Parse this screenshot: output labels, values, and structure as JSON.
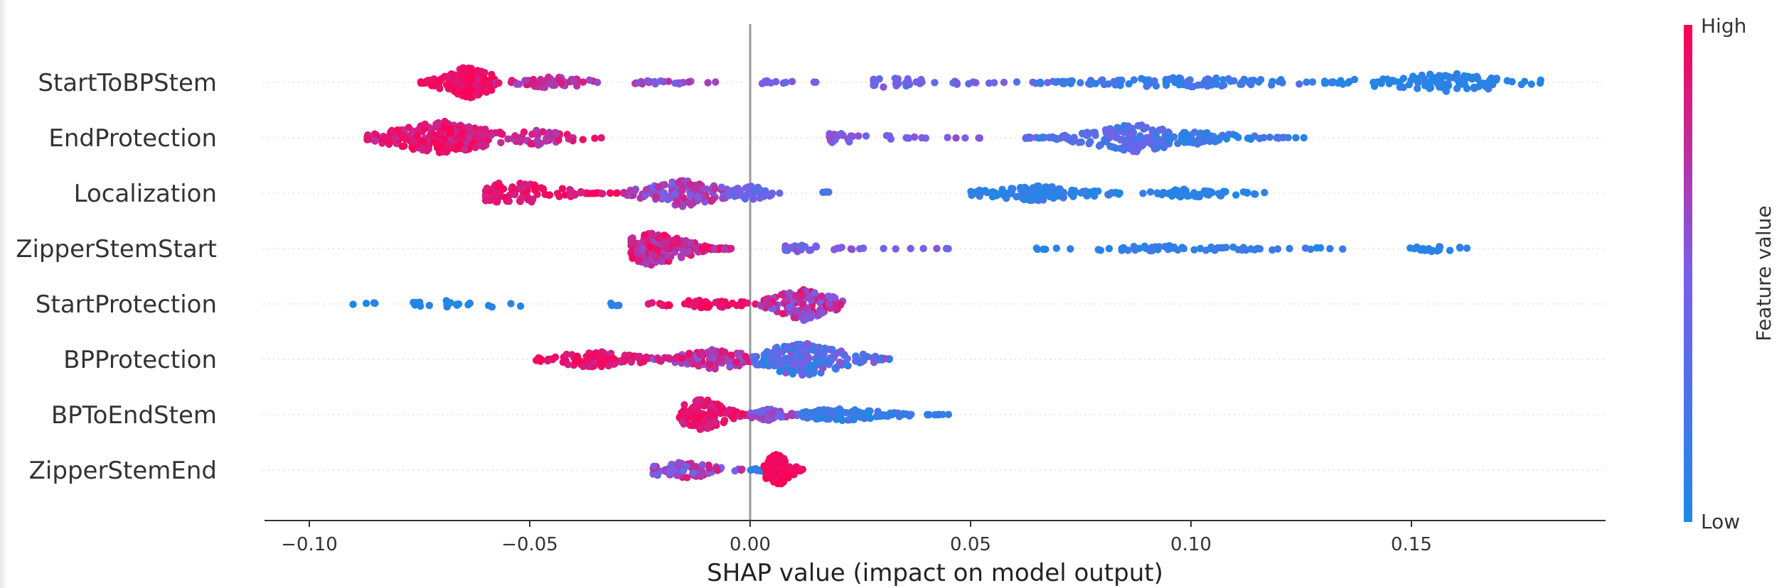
{
  "chart_data": {
    "type": "scatter",
    "subtype": "shap-beeswarm",
    "title": "",
    "xlabel": "SHAP value (impact on model output)",
    "xlim": [
      -0.11,
      0.195
    ],
    "xticks": [
      -0.1,
      -0.05,
      0.0,
      0.05,
      0.1,
      0.15
    ],
    "xtick_labels": [
      "−0.10",
      "−0.05",
      "0.00",
      "0.05",
      "0.10",
      "0.15"
    ],
    "grid": false,
    "colorbar": {
      "label": "Feature value",
      "high_label": "High",
      "low_label": "Low",
      "high_color": "#ff0052",
      "mid_color": "#7a5ee8",
      "low_color": "#1e88e5"
    },
    "features": [
      {
        "name": "StartToBPStem",
        "clusters": [
          {
            "from": -0.075,
            "to": -0.058,
            "center": -0.064,
            "count": 170,
            "spread": 0.95,
            "color_lo": 0.85,
            "color_hi": 1.0
          },
          {
            "from": -0.058,
            "to": -0.035,
            "center": -0.045,
            "count": 60,
            "spread": 0.35,
            "color_lo": 0.6,
            "color_hi": 0.95
          },
          {
            "from": -0.035,
            "to": -0.005,
            "center": -0.02,
            "count": 26,
            "spread": 0.12,
            "color_lo": 0.45,
            "color_hi": 0.75
          },
          {
            "from": -0.003,
            "to": 0.016,
            "center": 0.005,
            "count": 12,
            "spread": 0.12,
            "color_lo": 0.4,
            "color_hi": 0.6
          },
          {
            "from": 0.028,
            "to": 0.07,
            "center": 0.032,
            "count": 40,
            "spread": 0.3,
            "color_lo": 0.3,
            "color_hi": 0.55
          },
          {
            "from": 0.06,
            "to": 0.13,
            "center": 0.1,
            "count": 110,
            "spread": 0.3,
            "color_lo": 0.02,
            "color_hi": 0.3
          },
          {
            "from": 0.13,
            "to": 0.18,
            "center": 0.158,
            "count": 110,
            "spread": 0.55,
            "color_lo": 0.0,
            "color_hi": 0.15
          }
        ]
      },
      {
        "name": "EndProtection",
        "clusters": [
          {
            "from": -0.087,
            "to": -0.055,
            "center": -0.07,
            "count": 260,
            "spread": 1.0,
            "color_lo": 0.75,
            "color_hi": 1.0
          },
          {
            "from": -0.055,
            "to": -0.032,
            "center": -0.048,
            "count": 50,
            "spread": 0.45,
            "color_lo": 0.65,
            "color_hi": 0.95
          },
          {
            "from": 0.018,
            "to": 0.053,
            "center": 0.02,
            "count": 30,
            "spread": 0.3,
            "color_lo": 0.4,
            "color_hi": 0.65
          },
          {
            "from": 0.062,
            "to": 0.095,
            "center": 0.088,
            "count": 150,
            "spread": 0.85,
            "color_lo": 0.1,
            "color_hi": 0.5
          },
          {
            "from": 0.095,
            "to": 0.127,
            "center": 0.1,
            "count": 80,
            "spread": 0.4,
            "color_lo": 0.0,
            "color_hi": 0.3
          }
        ]
      },
      {
        "name": "Localization",
        "clusters": [
          {
            "from": -0.06,
            "to": -0.03,
            "center": -0.054,
            "count": 100,
            "spread": 0.7,
            "color_lo": 0.8,
            "color_hi": 1.0
          },
          {
            "from": -0.03,
            "to": -0.005,
            "center": -0.015,
            "count": 140,
            "spread": 0.8,
            "color_lo": 0.45,
            "color_hi": 0.85
          },
          {
            "from": -0.005,
            "to": 0.008,
            "center": 0.0,
            "count": 40,
            "spread": 0.45,
            "color_lo": 0.3,
            "color_hi": 0.55
          },
          {
            "from": 0.016,
            "to": 0.022,
            "center": 0.018,
            "count": 4,
            "spread": 0.1,
            "color_lo": 0.1,
            "color_hi": 0.3
          },
          {
            "from": 0.05,
            "to": 0.085,
            "center": 0.065,
            "count": 130,
            "spread": 0.45,
            "color_lo": 0.0,
            "color_hi": 0.2
          },
          {
            "from": 0.085,
            "to": 0.117,
            "center": 0.1,
            "count": 60,
            "spread": 0.25,
            "color_lo": 0.0,
            "color_hi": 0.12
          }
        ]
      },
      {
        "name": "ZipperStemStart",
        "clusters": [
          {
            "from": -0.027,
            "to": -0.004,
            "center": -0.022,
            "count": 200,
            "spread": 1.0,
            "color_lo": 0.6,
            "color_hi": 1.0
          },
          {
            "from": 0.008,
            "to": 0.045,
            "center": 0.012,
            "count": 40,
            "spread": 0.2,
            "color_lo": 0.35,
            "color_hi": 0.6
          },
          {
            "from": 0.06,
            "to": 0.135,
            "center": 0.1,
            "count": 70,
            "spread": 0.18,
            "color_lo": 0.0,
            "color_hi": 0.2
          },
          {
            "from": 0.147,
            "to": 0.164,
            "center": 0.155,
            "count": 20,
            "spread": 0.18,
            "color_lo": 0.0,
            "color_hi": 0.15
          }
        ]
      },
      {
        "name": "StartProtection",
        "clusters": [
          {
            "from": -0.097,
            "to": -0.052,
            "center": -0.065,
            "count": 25,
            "spread": 0.25,
            "color_lo": 0.0,
            "color_hi": 0.1
          },
          {
            "from": -0.034,
            "to": -0.024,
            "center": -0.03,
            "count": 4,
            "spread": 0.12,
            "color_lo": 0.0,
            "color_hi": 0.15
          },
          {
            "from": -0.025,
            "to": 0.002,
            "center": -0.01,
            "count": 50,
            "spread": 0.25,
            "color_lo": 0.85,
            "color_hi": 1.0
          },
          {
            "from": 0.002,
            "to": 0.021,
            "center": 0.012,
            "count": 160,
            "spread": 1.0,
            "color_lo": 0.45,
            "color_hi": 0.95
          }
        ]
      },
      {
        "name": "BPProtection",
        "clusters": [
          {
            "from": -0.049,
            "to": -0.022,
            "center": -0.035,
            "count": 110,
            "spread": 0.5,
            "color_lo": 0.8,
            "color_hi": 1.0
          },
          {
            "from": -0.022,
            "to": 0.002,
            "center": -0.008,
            "count": 120,
            "spread": 0.6,
            "color_lo": 0.5,
            "color_hi": 0.95
          },
          {
            "from": 0.0,
            "to": 0.032,
            "center": 0.012,
            "count": 200,
            "spread": 1.0,
            "color_lo": 0.0,
            "color_hi": 0.6
          }
        ]
      },
      {
        "name": "BPToEndStem",
        "clusters": [
          {
            "from": -0.016,
            "to": 0.0,
            "center": -0.011,
            "count": 140,
            "spread": 1.0,
            "color_lo": 0.8,
            "color_hi": 1.0
          },
          {
            "from": 0.0,
            "to": 0.012,
            "center": 0.004,
            "count": 80,
            "spread": 0.35,
            "color_lo": 0.3,
            "color_hi": 0.7
          },
          {
            "from": 0.012,
            "to": 0.045,
            "center": 0.02,
            "count": 130,
            "spread": 0.35,
            "color_lo": 0.0,
            "color_hi": 0.25
          }
        ]
      },
      {
        "name": "ZipperStemEnd",
        "clusters": [
          {
            "from": -0.022,
            "to": 0.002,
            "center": -0.015,
            "count": 90,
            "spread": 0.5,
            "color_lo": 0.4,
            "color_hi": 0.9
          },
          {
            "from": 0.0,
            "to": 0.009,
            "center": 0.002,
            "count": 10,
            "spread": 0.1,
            "color_lo": 0.0,
            "color_hi": 0.2
          },
          {
            "from": 0.003,
            "to": 0.012,
            "center": 0.006,
            "count": 130,
            "spread": 1.0,
            "color_lo": 0.92,
            "color_hi": 1.0
          }
        ]
      }
    ]
  }
}
